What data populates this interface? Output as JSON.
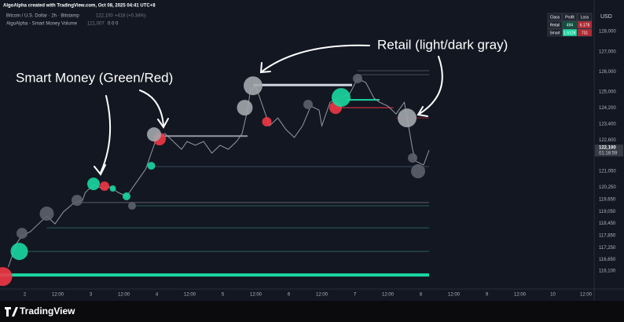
{
  "header": {
    "credit": "AlgoAlpha created with TradingView.com, Oct 08, 2025 04:41 UTC+8",
    "symbol": "Bitcoin / U.S. Dollar · 2h · Bitstamp",
    "symbol_price": "122,100",
    "symbol_change": "+418 (+0.34%)",
    "indicator": "AlgoAlpha - Smart Money Volume",
    "indicator_value": "121,007",
    "indicator_extra": "0 0 0"
  },
  "table": {
    "header": [
      "Class",
      "Profit",
      "Loss"
    ],
    "rows": [
      [
        "Retail",
        "494",
        "6.178"
      ],
      [
        "Smart",
        "1.512K",
        "731"
      ]
    ]
  },
  "footer": {
    "brand": "TradingView"
  },
  "chart_data": {
    "type": "line",
    "currency": "USD",
    "annotations": [
      "Smart Money (Green/Red)",
      "Retail (light/dark gray)"
    ],
    "xlim": [
      -9,
      207
    ],
    "ylim": [
      115190,
      129020
    ],
    "xticks": [
      {
        "value": 0,
        "label": "2"
      },
      {
        "value": 12,
        "label": "12:00"
      },
      {
        "value": 24,
        "label": "3"
      },
      {
        "value": 36,
        "label": "12:00"
      },
      {
        "value": 48,
        "label": "4"
      },
      {
        "value": 60,
        "label": "12:00"
      },
      {
        "value": 72,
        "label": "5"
      },
      {
        "value": 84,
        "label": "12:00"
      },
      {
        "value": 96,
        "label": "6"
      },
      {
        "value": 108,
        "label": "12:00"
      },
      {
        "value": 120,
        "label": "7"
      },
      {
        "value": 132,
        "label": "12:00"
      },
      {
        "value": 144,
        "label": "8"
      },
      {
        "value": 156,
        "label": "12:00"
      },
      {
        "value": 168,
        "label": "9"
      },
      {
        "value": 180,
        "label": "12:00"
      },
      {
        "value": 192,
        "label": "10"
      },
      {
        "value": 204,
        "label": "12:00"
      }
    ],
    "yticks": [
      {
        "value": 128000,
        "label": "128,000"
      },
      {
        "value": 127000,
        "label": "127,000"
      },
      {
        "value": 126000,
        "label": "126,000"
      },
      {
        "value": 125000,
        "label": "125,000"
      },
      {
        "value": 124200,
        "label": "124,200"
      },
      {
        "value": 123400,
        "label": "123,400"
      },
      {
        "value": 122600,
        "label": "122,600"
      },
      {
        "value": 121050,
        "label": "121,050"
      },
      {
        "value": 120250,
        "label": "120,250"
      },
      {
        "value": 119650,
        "label": "119,650"
      },
      {
        "value": 119050,
        "label": "119,050"
      },
      {
        "value": 118450,
        "label": "118,450"
      },
      {
        "value": 117850,
        "label": "117,850"
      },
      {
        "value": 117250,
        "label": "117,250"
      },
      {
        "value": 116650,
        "label": "116,650"
      },
      {
        "value": 116100,
        "label": "116,100"
      }
    ],
    "last_price": {
      "value": 122100,
      "label": "122,100"
    },
    "countdown": "01:18:59",
    "series": [
      {
        "color": "#9598a1",
        "x": [
          -6,
          -3,
          -1,
          2,
          5,
          8,
          11,
          14,
          18,
          21,
          22,
          25,
          28,
          31,
          34,
          37,
          38,
          41,
          44,
          45,
          47,
          48,
          51,
          54,
          57,
          59,
          62,
          65,
          68,
          71,
          74,
          77,
          79,
          81,
          82,
          84,
          87,
          89,
          92,
          95,
          98,
          101,
          104,
          107,
          108,
          111,
          114,
          118,
          121,
          124,
          127,
          129,
          132,
          135,
          138,
          139,
          141,
          142,
          145,
          147
        ],
        "values": [
          116280,
          117450,
          117840,
          118040,
          118430,
          118820,
          118430,
          119020,
          119490,
          119600,
          119990,
          120380,
          120190,
          120270,
          119990,
          119800,
          119990,
          120580,
          121160,
          121560,
          122340,
          122730,
          122920,
          122530,
          122140,
          122530,
          122340,
          122530,
          121950,
          122340,
          122140,
          122530,
          122920,
          124090,
          125070,
          125270,
          124090,
          123310,
          123700,
          123120,
          122730,
          123310,
          124290,
          124090,
          123310,
          124480,
          124680,
          124870,
          125660,
          125460,
          124680,
          124480,
          124290,
          123900,
          124480,
          123700,
          122140,
          121560,
          121360,
          122100
        ]
      }
    ],
    "bubbles": [
      {
        "color": "#f23645",
        "x": [
          -8,
          49,
          29,
          88,
          113
        ],
        "y": [
          115810,
          122650,
          120310,
          123510,
          124210
        ],
        "size": [
          12,
          8,
          6,
          6,
          8
        ]
      },
      {
        "color": "#19d7a0",
        "x": [
          -2,
          25,
          46,
          37,
          32,
          115
        ],
        "y": [
          117060,
          120420,
          121320,
          119800,
          120190,
          124720
        ],
        "size": [
          11,
          8,
          5,
          5,
          4,
          12
        ]
      },
      {
        "color": "#a3a6ad",
        "x": [
          83,
          80,
          47,
          139
        ],
        "y": [
          125300,
          124210,
          122880,
          123700
        ],
        "size": [
          12,
          10,
          9,
          12
        ]
      },
      {
        "color": "#5d606b",
        "x": [
          8,
          -1,
          19,
          39,
          103,
          121,
          141,
          143
        ],
        "y": [
          118940,
          117960,
          119600,
          119330,
          124370,
          125660,
          121710,
          121050
        ],
        "size": [
          9,
          7,
          7,
          5,
          6,
          6,
          6,
          9
        ]
      }
    ],
    "levels": [
      {
        "price": 115890,
        "from": -9,
        "to": 147,
        "color": "#19d7a0",
        "weight": 4
      },
      {
        "price": 125340,
        "from": 83,
        "to": 119,
        "color": "#d1d4dc",
        "weight": 3
      },
      {
        "price": 122800,
        "from": 48,
        "to": 81,
        "color": "#9598a1",
        "weight": 2
      },
      {
        "price": 124600,
        "from": 117,
        "to": 129,
        "color": "#19d7a0",
        "weight": 2
      },
      {
        "price": 124210,
        "from": 113,
        "to": 134,
        "color": "#f23645",
        "weight": 1
      },
      {
        "price": 119490,
        "from": 19,
        "to": 147,
        "color": "#5d606b",
        "weight": 1
      },
      {
        "price": 119330,
        "from": 39,
        "to": 147,
        "color": "#2a5e5a",
        "weight": 1
      },
      {
        "price": 121280,
        "from": 46,
        "to": 147,
        "color": "#3a4a5a",
        "weight": 1
      },
      {
        "price": 118230,
        "from": 8,
        "to": 147,
        "color": "#2a5e5a",
        "weight": 1
      },
      {
        "price": 117060,
        "from": -2,
        "to": 147,
        "color": "#2a5e5a",
        "weight": 1
      },
      {
        "price": 123700,
        "from": 135,
        "to": 147,
        "color": "#8b2230",
        "weight": 1
      },
      {
        "price": 126050,
        "from": 121,
        "to": 147,
        "color": "#4a4d55",
        "weight": 1
      },
      {
        "price": 125850,
        "from": 121,
        "to": 147,
        "color": "#4a4d55",
        "weight": 1
      }
    ]
  }
}
